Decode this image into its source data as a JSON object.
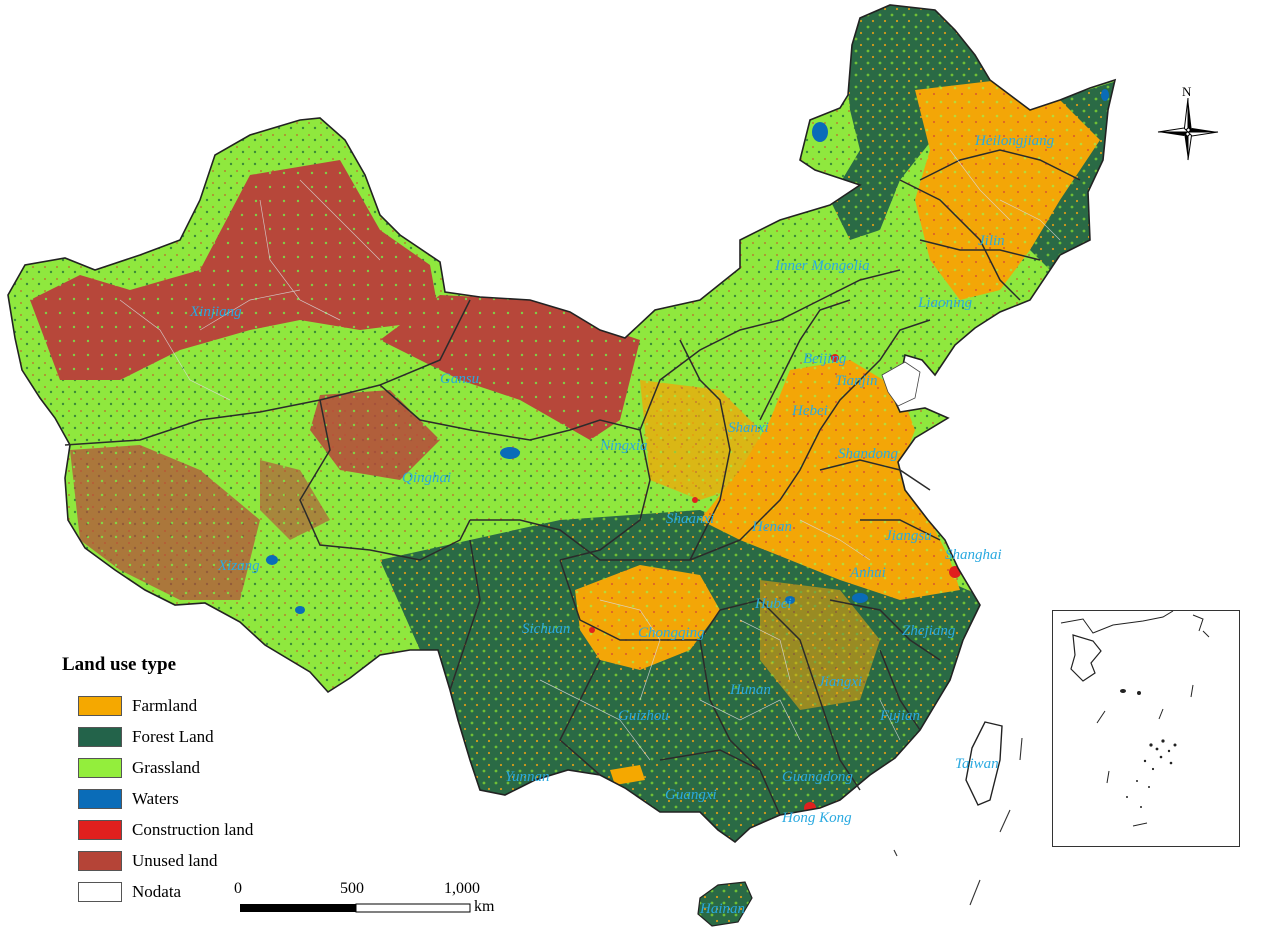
{
  "legend": {
    "title": "Land use type",
    "items": [
      {
        "label": "Farmland",
        "color": "#f5a800"
      },
      {
        "label": "Forest Land",
        "color": "#23634a"
      },
      {
        "label": "Grassland",
        "color": "#93ee3c"
      },
      {
        "label": "Waters",
        "color": "#0a6cb8"
      },
      {
        "label": "Construction land",
        "color": "#e0201e"
      },
      {
        "label": "Unused land",
        "color": "#b54437"
      },
      {
        "label": "Nodata",
        "color": "#ffffff"
      }
    ]
  },
  "scale": {
    "ticks": [
      "0",
      "500",
      "1,000"
    ],
    "unit": "km"
  },
  "north": {
    "letter": "N"
  },
  "provinces": [
    "Heilongjiang",
    "Jilin",
    "Liaoning",
    "Inner Mongolia",
    "Xinjiang",
    "Gansu",
    "Beijing",
    "Tianjin",
    "Hebei",
    "Shanxi",
    "Shandong",
    "Ningxia",
    "Qinghai",
    "Shaanxi",
    "Henan",
    "Jiangsu",
    "Shanghai",
    "Anhui",
    "Xizang",
    "Hubei",
    "Sichuan",
    "Chongqing",
    "Zhejiang",
    "Hunan",
    "Jiangxi",
    "Guizhou",
    "Fujian",
    "Taiwan",
    "Yunnan",
    "Guangxi",
    "Guangdong",
    "Hong Kong",
    "Hainan"
  ]
}
